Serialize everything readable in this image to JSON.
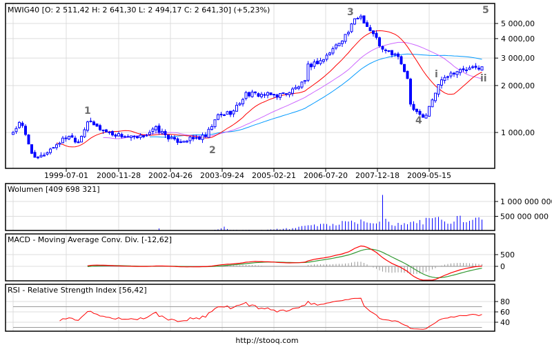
{
  "header": {
    "symbol": "MWIG40",
    "ohlc_text": "MWIG40 [O: 2 511,42  H: 2 641,30  L: 2 494,17  C: 2 641,30] (+5,23%)"
  },
  "footer": {
    "link": "http://stooq.com"
  },
  "chart_data": [
    {
      "type": "candlestick",
      "title": "MWIG40 [O: 2 511,42  H: 2 641,30  L: 2 494,17  C: 2 641,30] (+5,23%)",
      "last": {
        "open": 2511.42,
        "high": 2641.3,
        "low": 2494.17,
        "close": 2641.3,
        "change_pct": 5.23
      },
      "months": 152,
      "y_scale": "log",
      "ylim": [
        582,
        6650
      ],
      "y_ticks": [
        {
          "v": 1000,
          "label": "1 000,00"
        },
        {
          "v": 2000,
          "label": "2 000,00"
        },
        {
          "v": 3000,
          "label": "3 000,00"
        },
        {
          "v": 4000,
          "label": "4 000,00"
        },
        {
          "v": 5000,
          "label": "5 000,00"
        }
      ],
      "x_ticks": [
        "1999-07-01",
        "2000-11-28",
        "2002-04-26",
        "2003-09-24",
        "2005-02-21",
        "2006-07-20",
        "2007-12-18",
        "2009-05-15"
      ],
      "close_keypoints": [
        [
          0,
          1010
        ],
        [
          2.4,
          1165
        ],
        [
          7,
          670
        ],
        [
          9,
          700
        ],
        [
          15,
          870
        ],
        [
          18,
          960
        ],
        [
          21,
          870
        ],
        [
          24,
          1180
        ],
        [
          27,
          1085
        ],
        [
          31,
          990
        ],
        [
          40,
          910
        ],
        [
          46,
          1060
        ],
        [
          52,
          880
        ],
        [
          58,
          910
        ],
        [
          62,
          940
        ],
        [
          66,
          1280
        ],
        [
          71,
          1370
        ],
        [
          75,
          1770
        ],
        [
          85,
          1730
        ],
        [
          89,
          1820
        ],
        [
          94,
          2100
        ],
        [
          95,
          2660
        ],
        [
          100,
          2950
        ],
        [
          102,
          3260
        ],
        [
          105,
          3800
        ],
        [
          108,
          4420
        ],
        [
          110,
          5260
        ],
        [
          112,
          5600
        ],
        [
          114,
          4800
        ],
        [
          117,
          4000
        ],
        [
          119,
          3360
        ],
        [
          124,
          3100
        ],
        [
          125,
          2660
        ],
        [
          127,
          2280
        ],
        [
          128,
          1520
        ],
        [
          132,
          1260
        ],
        [
          133,
          1300
        ],
        [
          136,
          1800
        ],
        [
          138,
          2240
        ],
        [
          142,
          2450
        ],
        [
          147,
          2550
        ],
        [
          151,
          2640
        ]
      ],
      "series_colors": {
        "up_candle": "#ffffff",
        "down_candle": "#0000ff",
        "candle_border": "#0000ff",
        "ma_short": "#ff0000",
        "ma_mid": "#cc66ff",
        "ma_long": "#0099ff"
      },
      "annotations": [
        {
          "text": "1"
        },
        {
          "text": "2"
        },
        {
          "text": "3"
        },
        {
          "text": "4"
        },
        {
          "text": "5"
        },
        {
          "text": "i"
        },
        {
          "text": "ii"
        }
      ]
    },
    {
      "type": "bar",
      "title": "Wolumen [409 698 321]",
      "y_ticks": [
        {
          "v": 1000000000,
          "label": "1 000 000 000"
        },
        {
          "v": 500000000,
          "label": "500 000 000"
        }
      ],
      "volume_keypoints_millions": [
        [
          0,
          15
        ],
        [
          46,
          15
        ],
        [
          47,
          90
        ],
        [
          48,
          15
        ],
        [
          60,
          15
        ],
        [
          63,
          30
        ],
        [
          66,
          60
        ],
        [
          68,
          150
        ],
        [
          70,
          40
        ],
        [
          80,
          40
        ],
        [
          90,
          100
        ],
        [
          96,
          200
        ],
        [
          110,
          300
        ],
        [
          118,
          320
        ],
        [
          119,
          1220
        ],
        [
          120,
          420
        ],
        [
          122,
          200
        ],
        [
          130,
          270
        ],
        [
          137,
          480
        ],
        [
          140,
          250
        ],
        [
          144,
          520
        ],
        [
          146,
          300
        ],
        [
          151,
          390
        ]
      ],
      "color": "#0000ff"
    },
    {
      "type": "line",
      "title": "MACD - Moving Average Conv. Div. [-12,62]",
      "y_ticks": [
        {
          "v": 500,
          "label": "500"
        },
        {
          "v": 0,
          "label": "0"
        }
      ],
      "colors": {
        "macd": "#ff0000",
        "signal": "#339933",
        "histogram": "#999999"
      }
    },
    {
      "type": "line",
      "title": "RSI - Relative Strength Index [56,42]",
      "y_ticks": [
        {
          "v": 80,
          "label": "80"
        },
        {
          "v": 60,
          "label": "60"
        },
        {
          "v": 40,
          "label": "40"
        }
      ],
      "levels": [
        70,
        30
      ],
      "color": "#ff0000"
    }
  ]
}
